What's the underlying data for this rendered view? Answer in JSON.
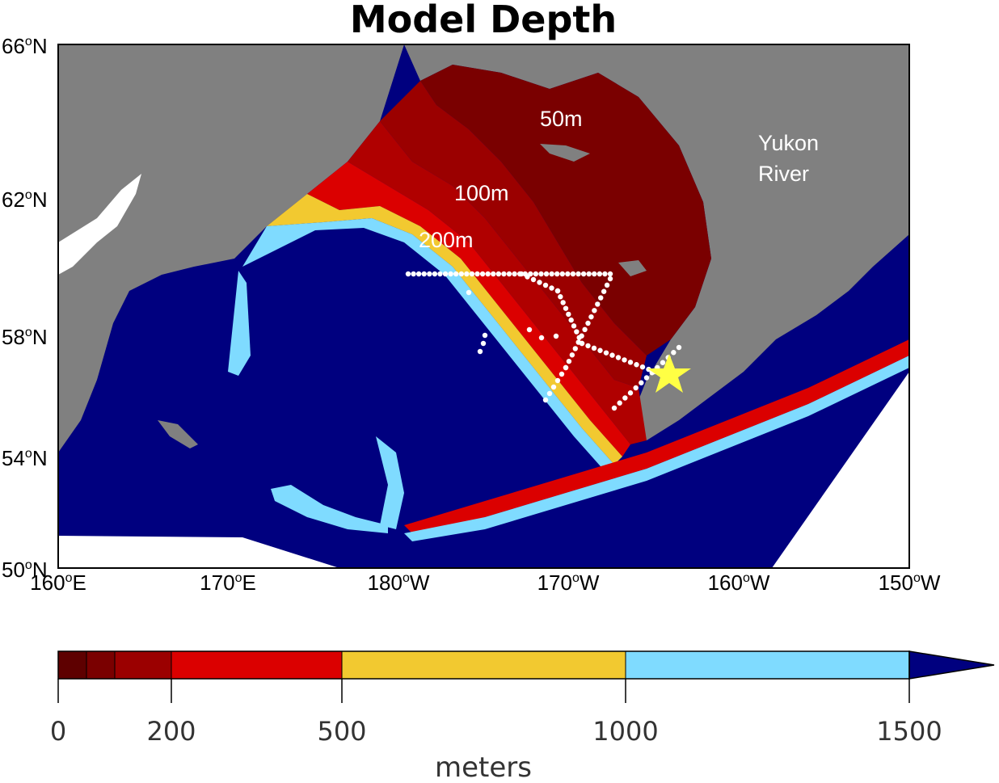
{
  "title": "Model Depth",
  "map": {
    "lat_labels": [
      {
        "deg": "66",
        "hemi": "N"
      },
      {
        "deg": "62",
        "hemi": "N"
      },
      {
        "deg": "58",
        "hemi": "N"
      },
      {
        "deg": "54",
        "hemi": "N"
      },
      {
        "deg": "50",
        "hemi": "N"
      }
    ],
    "lon_labels": [
      {
        "deg": "160",
        "hemi": "E"
      },
      {
        "deg": "170",
        "hemi": "E"
      },
      {
        "deg": "180",
        "hemi": "W"
      },
      {
        "deg": "170",
        "hemi": "W"
      },
      {
        "deg": "160",
        "hemi": "W"
      },
      {
        "deg": "150",
        "hemi": "W"
      }
    ],
    "depth_labels": [
      "50m",
      "100m",
      "200m"
    ],
    "river_label_line1": "Yukon",
    "river_label_line2": "River",
    "colors": {
      "land": "#808080",
      "deep": "#00007f",
      "d1500": "#7fdbff",
      "d1000": "#f2c930",
      "d500": "#db0000",
      "d200": "#b00000",
      "d100": "#9b0000",
      "d50": "#7a0000",
      "star": "#ffff44"
    }
  },
  "colorbar": {
    "ticks": [
      "0",
      "200",
      "500",
      "1000",
      "1500"
    ],
    "label": "meters"
  }
}
